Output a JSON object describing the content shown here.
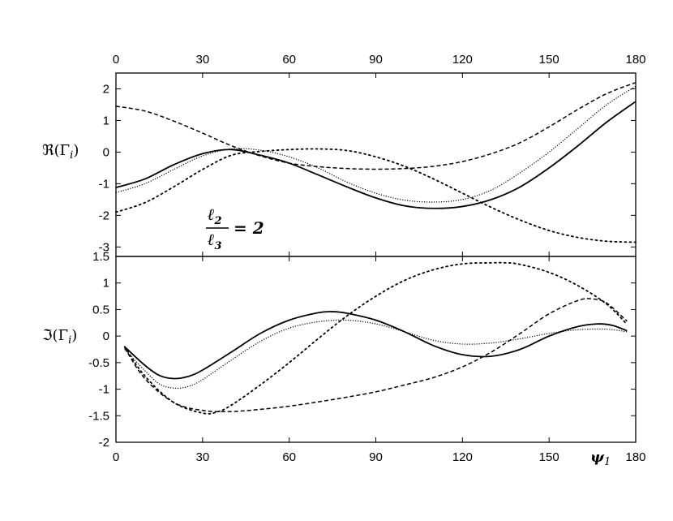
{
  "chart_data": [
    {
      "type": "line",
      "panel": "top",
      "ylabel": "ℜ(Γ",
      "ylabel_sub": "i",
      "ylabel_close": ")",
      "xlim": [
        0,
        180
      ],
      "ylim": [
        -3.3,
        2.5
      ],
      "xticks": [
        0,
        30,
        60,
        90,
        120,
        150,
        180
      ],
      "xtick_labels": [
        "0",
        "30",
        "60",
        "90",
        "120",
        "150",
        "180"
      ],
      "yticks": [
        2,
        1,
        0,
        -1,
        -2,
        -3
      ],
      "ytick_labels": [
        "2",
        "1",
        "0",
        "-1",
        "-2",
        "-3"
      ],
      "annotation": {
        "num": "ℓ",
        "num_sub": "2",
        "den": "ℓ",
        "den_sub": "3",
        "rhs": "= 2"
      },
      "series": [
        {
          "style": "solid",
          "x": [
            0,
            10,
            20,
            30,
            40,
            50,
            60,
            70,
            80,
            90,
            100,
            110,
            120,
            130,
            140,
            150,
            160,
            170,
            180
          ],
          "y": [
            -1.12,
            -0.85,
            -0.4,
            -0.05,
            0.08,
            -0.1,
            -0.35,
            -0.72,
            -1.1,
            -1.45,
            -1.7,
            -1.78,
            -1.72,
            -1.5,
            -1.1,
            -0.5,
            0.2,
            0.95,
            1.6
          ]
        },
        {
          "style": "dotted-fine",
          "x": [
            0,
            10,
            20,
            30,
            40,
            50,
            60,
            70,
            80,
            90,
            100,
            110,
            120,
            130,
            140,
            150,
            160,
            170,
            180
          ],
          "y": [
            -1.28,
            -1.0,
            -0.55,
            -0.12,
            0.1,
            0.06,
            -0.15,
            -0.5,
            -0.95,
            -1.3,
            -1.52,
            -1.58,
            -1.5,
            -1.2,
            -0.65,
            0.0,
            0.75,
            1.5,
            2.08
          ]
        },
        {
          "style": "dashed",
          "x": [
            0,
            10,
            20,
            30,
            40,
            50,
            60,
            70,
            80,
            90,
            100,
            110,
            120,
            130,
            140,
            150,
            160,
            170,
            180
          ],
          "y": [
            1.45,
            1.3,
            0.98,
            0.6,
            0.2,
            -0.12,
            -0.35,
            -0.46,
            -0.52,
            -0.54,
            -0.52,
            -0.45,
            -0.3,
            -0.05,
            0.3,
            0.8,
            1.35,
            1.85,
            2.2
          ]
        },
        {
          "style": "dotted",
          "x": [
            0,
            10,
            20,
            30,
            40,
            50,
            60,
            70,
            80,
            90,
            100,
            110,
            120,
            130,
            140,
            150,
            160,
            170,
            180
          ],
          "y": [
            -1.9,
            -1.6,
            -1.1,
            -0.55,
            -0.1,
            0.02,
            0.08,
            0.1,
            0.05,
            -0.15,
            -0.45,
            -0.85,
            -1.3,
            -1.75,
            -2.15,
            -2.48,
            -2.7,
            -2.82,
            -2.85
          ]
        }
      ]
    },
    {
      "type": "line",
      "panel": "bottom",
      "xlabel": "ψ",
      "xlabel_sub": "1",
      "ylabel": "ℑ(Γ",
      "ylabel_sub": "i",
      "ylabel_close": ")",
      "xlim": [
        0,
        180
      ],
      "ylim": [
        -2,
        1.5
      ],
      "xticks": [
        0,
        30,
        60,
        90,
        120,
        150,
        180
      ],
      "xtick_labels": [
        "0",
        "30",
        "60",
        "90",
        "120",
        "150",
        "180"
      ],
      "yticks": [
        1.5,
        1,
        0.5,
        0,
        -0.5,
        -1,
        -1.5,
        -2
      ],
      "ytick_labels": [
        "1.5",
        "1",
        "0.5",
        "0",
        "-0.5",
        "-1",
        "-1.5",
        "-2"
      ],
      "series": [
        {
          "style": "solid",
          "x": [
            3,
            10,
            15,
            20,
            25,
            30,
            40,
            50,
            60,
            70,
            75,
            80,
            90,
            100,
            110,
            120,
            130,
            140,
            150,
            160,
            167,
            172,
            177
          ],
          "y": [
            -0.2,
            -0.55,
            -0.74,
            -0.8,
            -0.76,
            -0.64,
            -0.3,
            0.05,
            0.3,
            0.44,
            0.46,
            0.43,
            0.3,
            0.08,
            -0.18,
            -0.35,
            -0.38,
            -0.25,
            0.0,
            0.18,
            0.23,
            0.2,
            0.1
          ]
        },
        {
          "style": "dotted-fine",
          "x": [
            3,
            10,
            15,
            20,
            25,
            30,
            40,
            50,
            60,
            70,
            80,
            90,
            100,
            110,
            120,
            130,
            140,
            150,
            160,
            170,
            177
          ],
          "y": [
            -0.25,
            -0.65,
            -0.9,
            -0.98,
            -0.95,
            -0.82,
            -0.45,
            -0.1,
            0.15,
            0.27,
            0.3,
            0.23,
            0.08,
            -0.08,
            -0.15,
            -0.13,
            -0.05,
            0.05,
            0.12,
            0.13,
            0.08
          ]
        },
        {
          "style": "dashed",
          "x": [
            3,
            10,
            20,
            30,
            40,
            50,
            60,
            70,
            80,
            90,
            100,
            110,
            120,
            130,
            140,
            150,
            160,
            165,
            170,
            177
          ],
          "y": [
            -0.22,
            -0.8,
            -1.25,
            -1.4,
            -1.42,
            -1.38,
            -1.32,
            -1.24,
            -1.15,
            -1.05,
            -0.92,
            -0.78,
            -0.58,
            -0.3,
            0.05,
            0.42,
            0.67,
            0.7,
            0.62,
            0.28
          ]
        },
        {
          "style": "dotted",
          "x": [
            3,
            10,
            20,
            30,
            35,
            40,
            50,
            60,
            70,
            80,
            90,
            100,
            110,
            120,
            130,
            135,
            140,
            150,
            160,
            170,
            177
          ],
          "y": [
            -0.2,
            -0.75,
            -1.25,
            -1.45,
            -1.43,
            -1.3,
            -0.92,
            -0.5,
            -0.05,
            0.38,
            0.75,
            1.05,
            1.25,
            1.36,
            1.38,
            1.38,
            1.35,
            1.2,
            0.95,
            0.6,
            0.22
          ]
        }
      ]
    }
  ]
}
